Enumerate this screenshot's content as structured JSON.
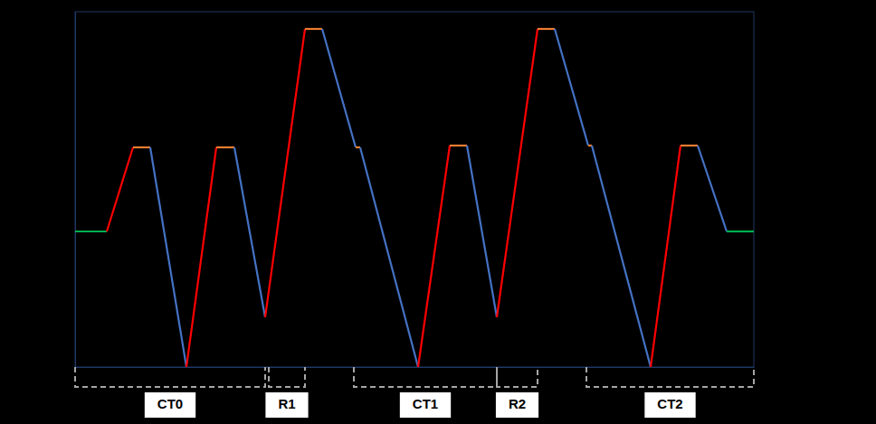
{
  "chart_data": {
    "type": "line",
    "tick_labels": false,
    "xlim": [
      0,
      750
    ],
    "ylim": [
      0,
      393
    ],
    "series": [
      {
        "color": "#00b050",
        "x": [
          0,
          35
        ],
        "values": [
          150,
          150
        ]
      },
      {
        "color": "#ff0000",
        "x": [
          35,
          64
        ],
        "values": [
          150,
          243
        ]
      },
      {
        "color": "#ed7d31",
        "x": [
          64,
          83
        ],
        "values": [
          243,
          243
        ]
      },
      {
        "color": "#4472c4",
        "x": [
          83,
          123
        ],
        "values": [
          243,
          0
        ]
      },
      {
        "color": "#ff0000",
        "x": [
          123,
          156
        ],
        "values": [
          0,
          243
        ]
      },
      {
        "color": "#ed7d31",
        "x": [
          156,
          176
        ],
        "values": [
          243,
          243
        ]
      },
      {
        "color": "#4472c4",
        "x": [
          176,
          210
        ],
        "values": [
          243,
          55
        ]
      },
      {
        "color": "#ff0000",
        "x": [
          210,
          254
        ],
        "values": [
          55,
          374
        ]
      },
      {
        "color": "#ed7d31",
        "x": [
          254,
          273
        ],
        "values": [
          374,
          374
        ]
      },
      {
        "color": "#4472c4",
        "x": [
          273,
          310
        ],
        "values": [
          374,
          243
        ]
      },
      {
        "color": "#ed7d31",
        "x": [
          310,
          315
        ],
        "values": [
          243,
          243
        ]
      },
      {
        "color": "#4472c4",
        "x": [
          315,
          379
        ],
        "values": [
          243,
          0
        ]
      },
      {
        "color": "#ff0000",
        "x": [
          379,
          414
        ],
        "values": [
          0,
          245
        ]
      },
      {
        "color": "#ed7d31",
        "x": [
          414,
          433
        ],
        "values": [
          245,
          245
        ]
      },
      {
        "color": "#4472c4",
        "x": [
          433,
          466
        ],
        "values": [
          245,
          55
        ]
      },
      {
        "color": "#ff0000",
        "x": [
          466,
          511
        ],
        "values": [
          55,
          374
        ]
      },
      {
        "color": "#ed7d31",
        "x": [
          511,
          530
        ],
        "values": [
          374,
          374
        ]
      },
      {
        "color": "#4472c4",
        "x": [
          530,
          567
        ],
        "values": [
          374,
          245
        ]
      },
      {
        "color": "#ed7d31",
        "x": [
          567,
          571
        ],
        "values": [
          245,
          245
        ]
      },
      {
        "color": "#4472c4",
        "x": [
          571,
          636
        ],
        "values": [
          245,
          0
        ]
      },
      {
        "color": "#ff0000",
        "x": [
          636,
          669
        ],
        "values": [
          0,
          245
        ]
      },
      {
        "color": "#ed7d31",
        "x": [
          669,
          688
        ],
        "values": [
          245,
          245
        ]
      },
      {
        "color": "#4472c4",
        "x": [
          688,
          720
        ],
        "values": [
          245,
          150
        ]
      },
      {
        "color": "#00b050",
        "x": [
          720,
          750
        ],
        "values": [
          150,
          150
        ]
      }
    ],
    "annotations": [
      {
        "text": "CT0",
        "x0": 0,
        "x1": 210
      },
      {
        "text": "R1",
        "x0": 214,
        "x1": 254
      },
      {
        "text": "CT1",
        "x0": 308,
        "x1": 466
      },
      {
        "text": "R2",
        "x0": 466,
        "x1": 511
      },
      {
        "text": "CT2",
        "x0": 565,
        "x1": 750
      }
    ]
  }
}
